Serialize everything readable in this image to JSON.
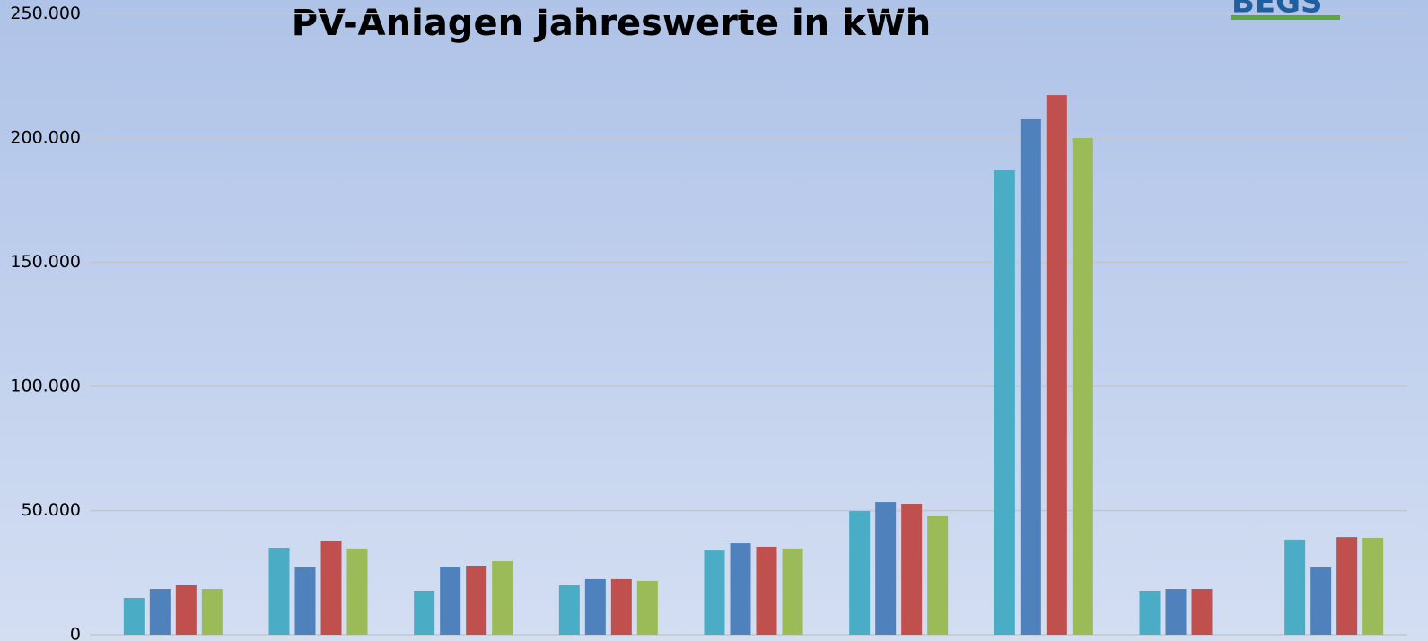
{
  "chart_data": {
    "type": "bar",
    "title": "PV-Anlagen Jahreswerte in kWh",
    "logo": "BEGS",
    "categories": [
      null,
      null,
      null,
      null,
      null,
      null,
      null,
      null,
      null
    ],
    "series": [
      {
        "color": "#4bacc6",
        "values": [
          14800,
          35000,
          17700,
          19900,
          33900,
          49800,
          187000,
          17700,
          38300
        ]
      },
      {
        "color": "#4f81bd",
        "values": [
          18400,
          27100,
          27400,
          22400,
          36800,
          53400,
          207600,
          18400,
          27100
        ]
      },
      {
        "color": "#c0504d",
        "values": [
          19900,
          37900,
          27800,
          22400,
          35400,
          52700,
          217300,
          18400,
          39300
        ]
      },
      {
        "color": "#9bbb59",
        "values": [
          18400,
          34700,
          29600,
          21700,
          34700,
          47700,
          200000,
          null,
          39000
        ]
      }
    ],
    "ylim": [
      0,
      250000
    ],
    "yticks": [
      0,
      {
        "value": 50000,
        "label": "50.000"
      },
      {
        "value": 100000,
        "label": "100.000"
      },
      {
        "value": 150000,
        "label": "150.000"
      },
      {
        "value": 200000,
        "label": "200.000"
      },
      {
        "value": 250000,
        "label": "250.000"
      }
    ],
    "grid": true
  }
}
